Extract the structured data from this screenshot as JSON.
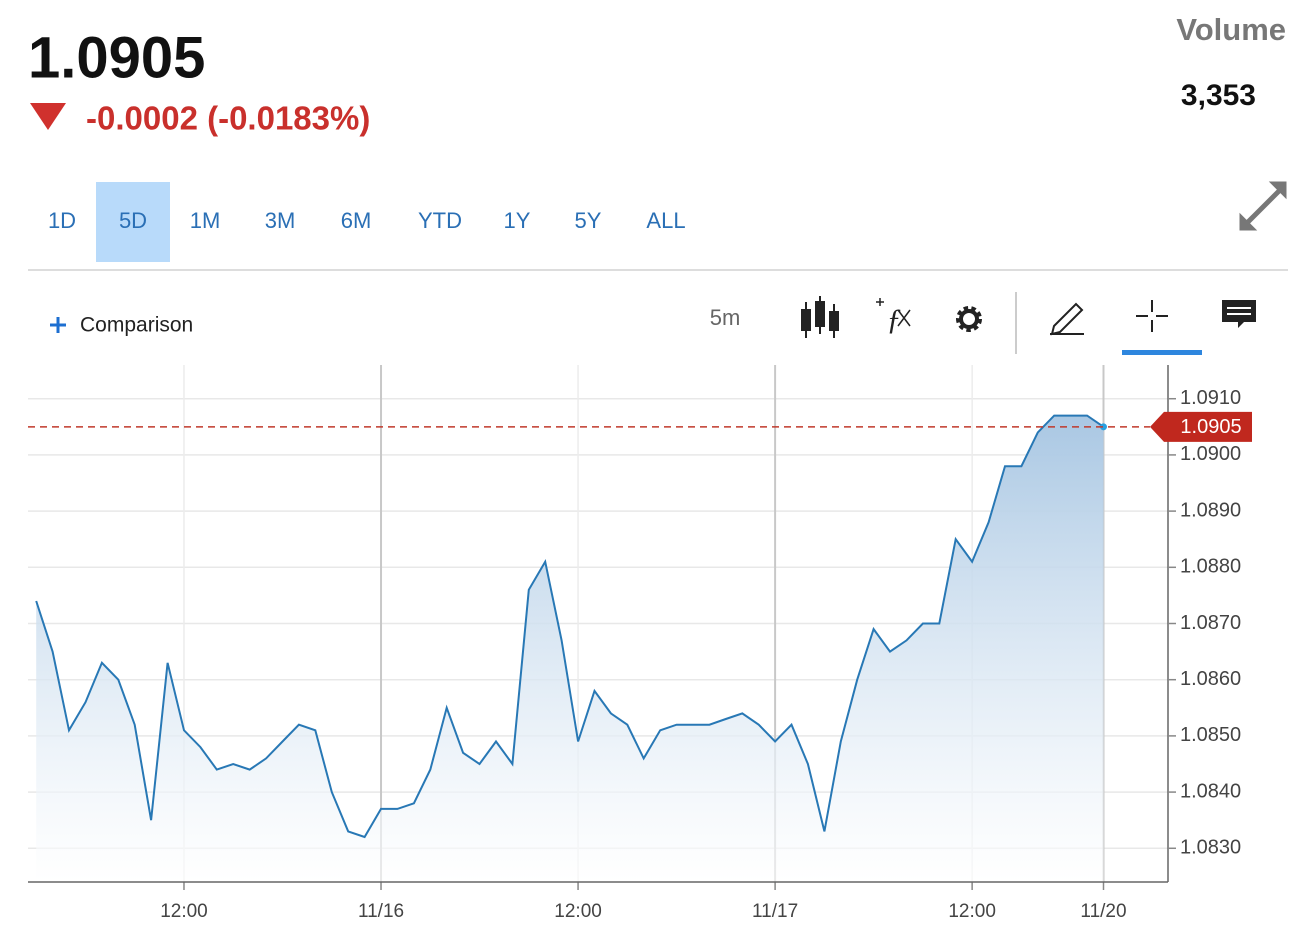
{
  "header": {
    "price": "1.0905",
    "change": "-0.0002 (-0.0183%)",
    "volume_label": "Volume",
    "volume": "3,353"
  },
  "ranges": [
    "1D",
    "5D",
    "1M",
    "3M",
    "6M",
    "YTD",
    "1Y",
    "5Y",
    "ALL"
  ],
  "selected_range": "5D",
  "toolbar": {
    "comparison": "Comparison",
    "interval": "5m"
  },
  "chart_data": {
    "type": "area",
    "categories": [
      null,
      null,
      null,
      null,
      null,
      null,
      null,
      null,
      null,
      "12:00",
      null,
      null,
      null,
      null,
      null,
      null,
      null,
      null,
      null,
      null,
      null,
      "11/16",
      null,
      null,
      null,
      null,
      null,
      null,
      null,
      null,
      null,
      null,
      null,
      "12:00",
      null,
      null,
      null,
      null,
      null,
      null,
      null,
      null,
      null,
      null,
      null,
      "11/17",
      null,
      null,
      null,
      null,
      null,
      null,
      null,
      null,
      null,
      null,
      null,
      "12:00",
      null,
      null,
      null,
      null,
      null,
      null,
      null,
      "11/20"
    ],
    "series": [
      {
        "color": "#2878b5",
        "values": [
          1.0874,
          1.0865,
          1.0851,
          1.0856,
          1.0863,
          1.086,
          1.0852,
          1.0835,
          1.0863,
          1.0851,
          1.0848,
          1.0844,
          1.0845,
          1.0844,
          1.0846,
          1.0849,
          1.0852,
          1.0851,
          1.084,
          1.0833,
          1.0832,
          1.0837,
          1.0837,
          1.0838,
          1.0844,
          1.0855,
          1.0847,
          1.0845,
          1.0849,
          1.0845,
          1.0876,
          1.0881,
          1.0867,
          1.0849,
          1.0858,
          1.0854,
          1.0852,
          1.0846,
          1.0851,
          1.0852,
          1.0852,
          1.0852,
          1.0853,
          1.0854,
          1.0852,
          1.0849,
          1.0852,
          1.0845,
          1.0833,
          1.0849,
          1.086,
          1.0869,
          1.0865,
          1.0867,
          1.087,
          1.087,
          1.0885,
          1.0881,
          1.0888,
          1.0898,
          1.0898,
          1.0904,
          1.0907,
          1.0907,
          1.0907,
          1.0905
        ]
      }
    ],
    "last_price": 1.0905,
    "ylim": [
      1.0824,
      1.0916
    ],
    "yticks": [
      {
        "value": 1.083,
        "label": "1.0830"
      },
      {
        "value": 1.084,
        "label": "1.0840"
      },
      {
        "value": 1.085,
        "label": "1.0850"
      },
      {
        "value": 1.086,
        "label": "1.0860"
      },
      {
        "value": 1.087,
        "label": "1.0870"
      },
      {
        "value": 1.088,
        "label": "1.0880"
      },
      {
        "value": 1.089,
        "label": "1.0890"
      },
      {
        "value": 1.09,
        "label": "1.0900"
      },
      {
        "value": 1.091,
        "label": "1.0910"
      }
    ],
    "grid": true
  }
}
